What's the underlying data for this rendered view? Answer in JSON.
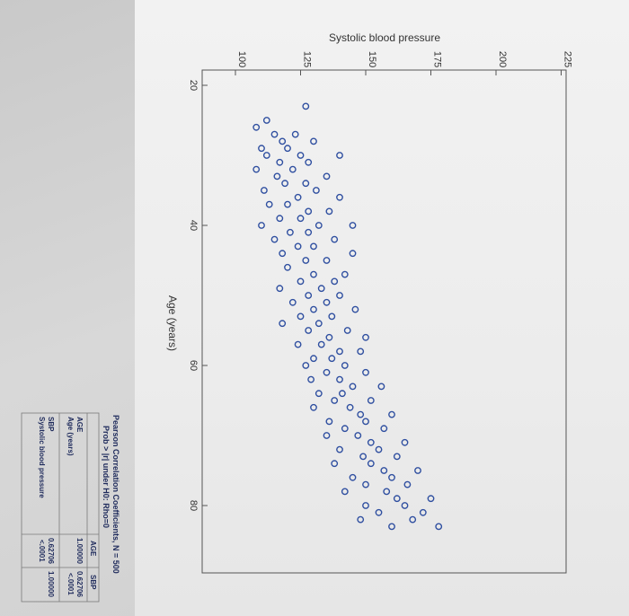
{
  "chart_data": {
    "type": "scatter",
    "orientation": "rotated 90° clockwise (photographed printout)",
    "ylabel": "Systolic blood pressure",
    "xlabel": "Age (years)",
    "x_ticks": [
      20,
      40,
      60,
      80
    ],
    "y_ticks": [
      100,
      125,
      150,
      175,
      200,
      225
    ],
    "xlim": [
      20,
      85
    ],
    "ylim": [
      95,
      230
    ],
    "marker_color": "#2f4fa0",
    "points": [
      [
        23,
        127
      ],
      [
        25,
        112
      ],
      [
        26,
        108
      ],
      [
        27,
        115
      ],
      [
        27,
        123
      ],
      [
        28,
        118
      ],
      [
        28,
        130
      ],
      [
        29,
        110
      ],
      [
        29,
        120
      ],
      [
        30,
        125
      ],
      [
        30,
        112
      ],
      [
        30,
        140
      ],
      [
        31,
        117
      ],
      [
        31,
        128
      ],
      [
        32,
        108
      ],
      [
        32,
        122
      ],
      [
        33,
        135
      ],
      [
        33,
        116
      ],
      [
        34,
        119
      ],
      [
        34,
        127
      ],
      [
        35,
        111
      ],
      [
        35,
        131
      ],
      [
        36,
        124
      ],
      [
        36,
        140
      ],
      [
        37,
        113
      ],
      [
        37,
        120
      ],
      [
        38,
        128
      ],
      [
        38,
        136
      ],
      [
        39,
        117
      ],
      [
        39,
        125
      ],
      [
        40,
        110
      ],
      [
        40,
        132
      ],
      [
        40,
        145
      ],
      [
        41,
        121
      ],
      [
        41,
        128
      ],
      [
        42,
        115
      ],
      [
        42,
        138
      ],
      [
        43,
        124
      ],
      [
        43,
        130
      ],
      [
        44,
        118
      ],
      [
        44,
        145
      ],
      [
        45,
        127
      ],
      [
        45,
        135
      ],
      [
        46,
        120
      ],
      [
        47,
        130
      ],
      [
        47,
        142
      ],
      [
        48,
        125
      ],
      [
        48,
        138
      ],
      [
        49,
        117
      ],
      [
        49,
        133
      ],
      [
        50,
        128
      ],
      [
        50,
        140
      ],
      [
        51,
        122
      ],
      [
        51,
        135
      ],
      [
        52,
        130
      ],
      [
        52,
        146
      ],
      [
        53,
        125
      ],
      [
        53,
        137
      ],
      [
        54,
        118
      ],
      [
        54,
        132
      ],
      [
        55,
        128
      ],
      [
        55,
        143
      ],
      [
        56,
        136
      ],
      [
        56,
        150
      ],
      [
        57,
        124
      ],
      [
        57,
        133
      ],
      [
        58,
        140
      ],
      [
        58,
        148
      ],
      [
        59,
        130
      ],
      [
        59,
        137
      ],
      [
        60,
        127
      ],
      [
        60,
        142
      ],
      [
        61,
        135
      ],
      [
        61,
        150
      ],
      [
        62,
        129
      ],
      [
        62,
        140
      ],
      [
        63,
        145
      ],
      [
        63,
        156
      ],
      [
        64,
        132
      ],
      [
        64,
        141
      ],
      [
        65,
        138
      ],
      [
        65,
        152
      ],
      [
        66,
        130
      ],
      [
        66,
        144
      ],
      [
        67,
        148
      ],
      [
        67,
        160
      ],
      [
        68,
        136
      ],
      [
        68,
        150
      ],
      [
        69,
        142
      ],
      [
        69,
        157
      ],
      [
        70,
        135
      ],
      [
        70,
        147
      ],
      [
        71,
        152
      ],
      [
        71,
        165
      ],
      [
        72,
        140
      ],
      [
        72,
        155
      ],
      [
        73,
        149
      ],
      [
        73,
        162
      ],
      [
        74,
        138
      ],
      [
        74,
        152
      ],
      [
        75,
        157
      ],
      [
        75,
        170
      ],
      [
        76,
        145
      ],
      [
        76,
        160
      ],
      [
        77,
        150
      ],
      [
        77,
        166
      ],
      [
        78,
        142
      ],
      [
        78,
        158
      ],
      [
        79,
        162
      ],
      [
        79,
        175
      ],
      [
        80,
        150
      ],
      [
        80,
        165
      ],
      [
        81,
        155
      ],
      [
        81,
        172
      ],
      [
        82,
        148
      ],
      [
        82,
        168
      ],
      [
        83,
        160
      ],
      [
        83,
        178
      ]
    ]
  },
  "table": {
    "title": "Pearson Correlation Coefficients, N = 500",
    "subtitle": "Prob > |r| under H0: Rho=0",
    "col_headers": [
      "AGE",
      "SBP"
    ],
    "rows": [
      {
        "label": "AGE",
        "sublabel": "Age (years)",
        "values": [
          "1.00000",
          "0.62706"
        ],
        "pvalues": [
          "",
          "<.0001"
        ]
      },
      {
        "label": "SBP",
        "sublabel": "Systolic blood pressure",
        "values": [
          "0.62706",
          "1.00000"
        ],
        "pvalues": [
          "<.0001",
          ""
        ]
      }
    ]
  }
}
